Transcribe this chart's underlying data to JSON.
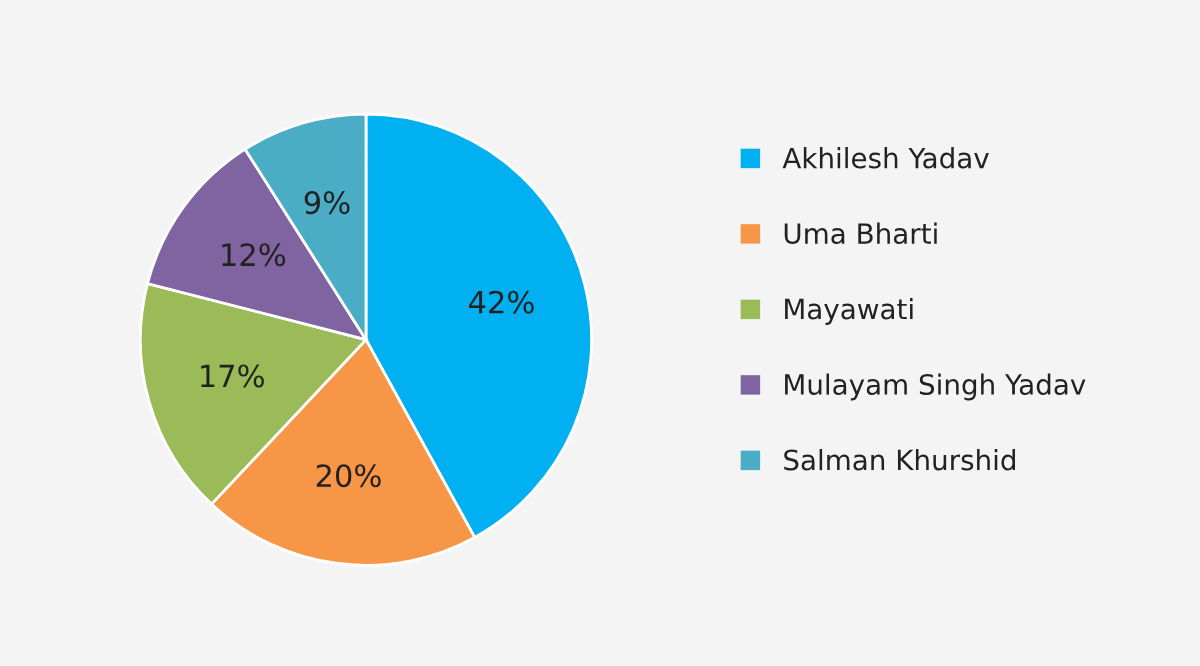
{
  "chart_data": {
    "type": "pie",
    "categories": [
      "Akhilesh Yadav",
      "Uma Bharti",
      "Mayawati",
      "Mulayam Singh Yadav",
      "Salman Khurshid"
    ],
    "values": [
      42,
      20,
      17,
      12,
      9
    ],
    "colors": [
      "#00b0f0",
      "#f79646",
      "#9bbb59",
      "#8064a2",
      "#4bacc6"
    ],
    "value_labels": [
      "42%",
      "20%",
      "17%",
      "12%",
      "9%"
    ],
    "legend": "right"
  }
}
